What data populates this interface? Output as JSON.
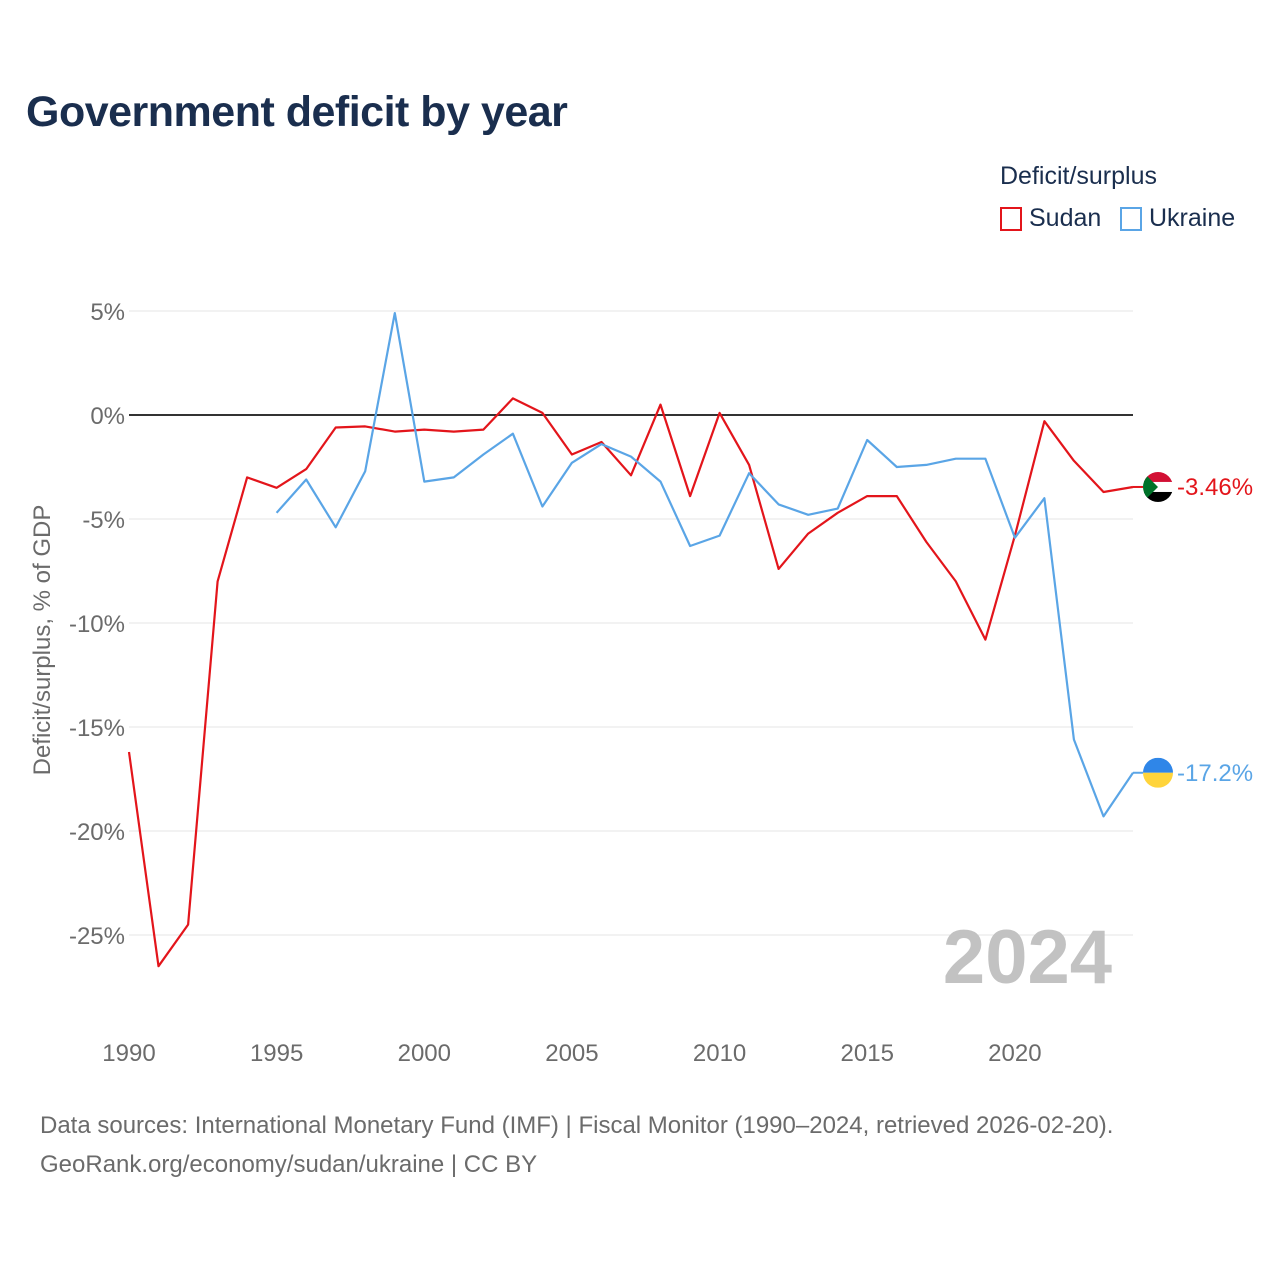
{
  "title": "Government deficit by year",
  "legend": {
    "title": "Deficit/surplus",
    "items": [
      {
        "label": "Sudan",
        "color": "#e3151b"
      },
      {
        "label": "Ukraine",
        "color": "#5aa5e6"
      }
    ]
  },
  "watermark_year": "2024",
  "sources": {
    "line1": "Data sources: International Monetary Fund (IMF) | Fiscal Monitor (1990–2024, retrieved 2026-02-20).",
    "line2": "GeoRank.org/economy/sudan/ukraine | CC BY"
  },
  "chart_data": {
    "type": "line",
    "title": "Government deficit by year",
    "xlabel": "",
    "ylabel": "Deficit/surplus, % of GDP",
    "xlim": [
      1990,
      2024
    ],
    "ylim": [
      -28,
      5
    ],
    "x_ticks": [
      1990,
      1995,
      2000,
      2005,
      2010,
      2015,
      2020
    ],
    "y_ticks": [
      5,
      0,
      -5,
      -10,
      -15,
      -20,
      -25
    ],
    "y_tick_labels": [
      "5%",
      "0%",
      "-5%",
      "-10%",
      "-15%",
      "-20%",
      "-25%"
    ],
    "series": [
      {
        "name": "Sudan",
        "color": "#e3151b",
        "end_label": "-3.46%",
        "x": [
          1990,
          1991,
          1992,
          1993,
          1994,
          1995,
          1996,
          1997,
          1998,
          1999,
          2000,
          2001,
          2002,
          2003,
          2004,
          2005,
          2006,
          2007,
          2008,
          2009,
          2010,
          2011,
          2012,
          2013,
          2014,
          2015,
          2016,
          2017,
          2018,
          2019,
          2020,
          2021,
          2022,
          2023,
          2024
        ],
        "values": [
          -16.2,
          -26.5,
          -24.5,
          -8.0,
          -3.0,
          -3.5,
          -2.6,
          -0.6,
          -0.55,
          -0.8,
          -0.7,
          -0.8,
          -0.7,
          0.8,
          0.1,
          -1.9,
          -1.3,
          -2.9,
          0.5,
          -3.9,
          0.1,
          -2.4,
          -7.4,
          -5.7,
          -4.7,
          -3.9,
          -3.9,
          -6.1,
          -8.0,
          -10.8,
          -5.8,
          -0.3,
          -2.2,
          -3.7,
          -3.46
        ]
      },
      {
        "name": "Ukraine",
        "color": "#5aa5e6",
        "end_label": "-17.2%",
        "x": [
          1995,
          1996,
          1997,
          1998,
          1999,
          2000,
          2001,
          2002,
          2003,
          2004,
          2005,
          2006,
          2007,
          2008,
          2009,
          2010,
          2011,
          2012,
          2013,
          2014,
          2015,
          2016,
          2017,
          2018,
          2019,
          2020,
          2021,
          2022,
          2023,
          2024
        ],
        "values": [
          -4.7,
          -3.1,
          -5.4,
          -2.7,
          4.9,
          -3.2,
          -3.0,
          -1.9,
          -0.9,
          -4.4,
          -2.3,
          -1.4,
          -2.0,
          -3.2,
          -6.3,
          -5.8,
          -2.8,
          -4.3,
          -4.8,
          -4.5,
          -1.2,
          -2.5,
          -2.4,
          -2.1,
          -2.1,
          -5.9,
          -4.0,
          -15.6,
          -19.3,
          -17.2
        ]
      }
    ]
  }
}
